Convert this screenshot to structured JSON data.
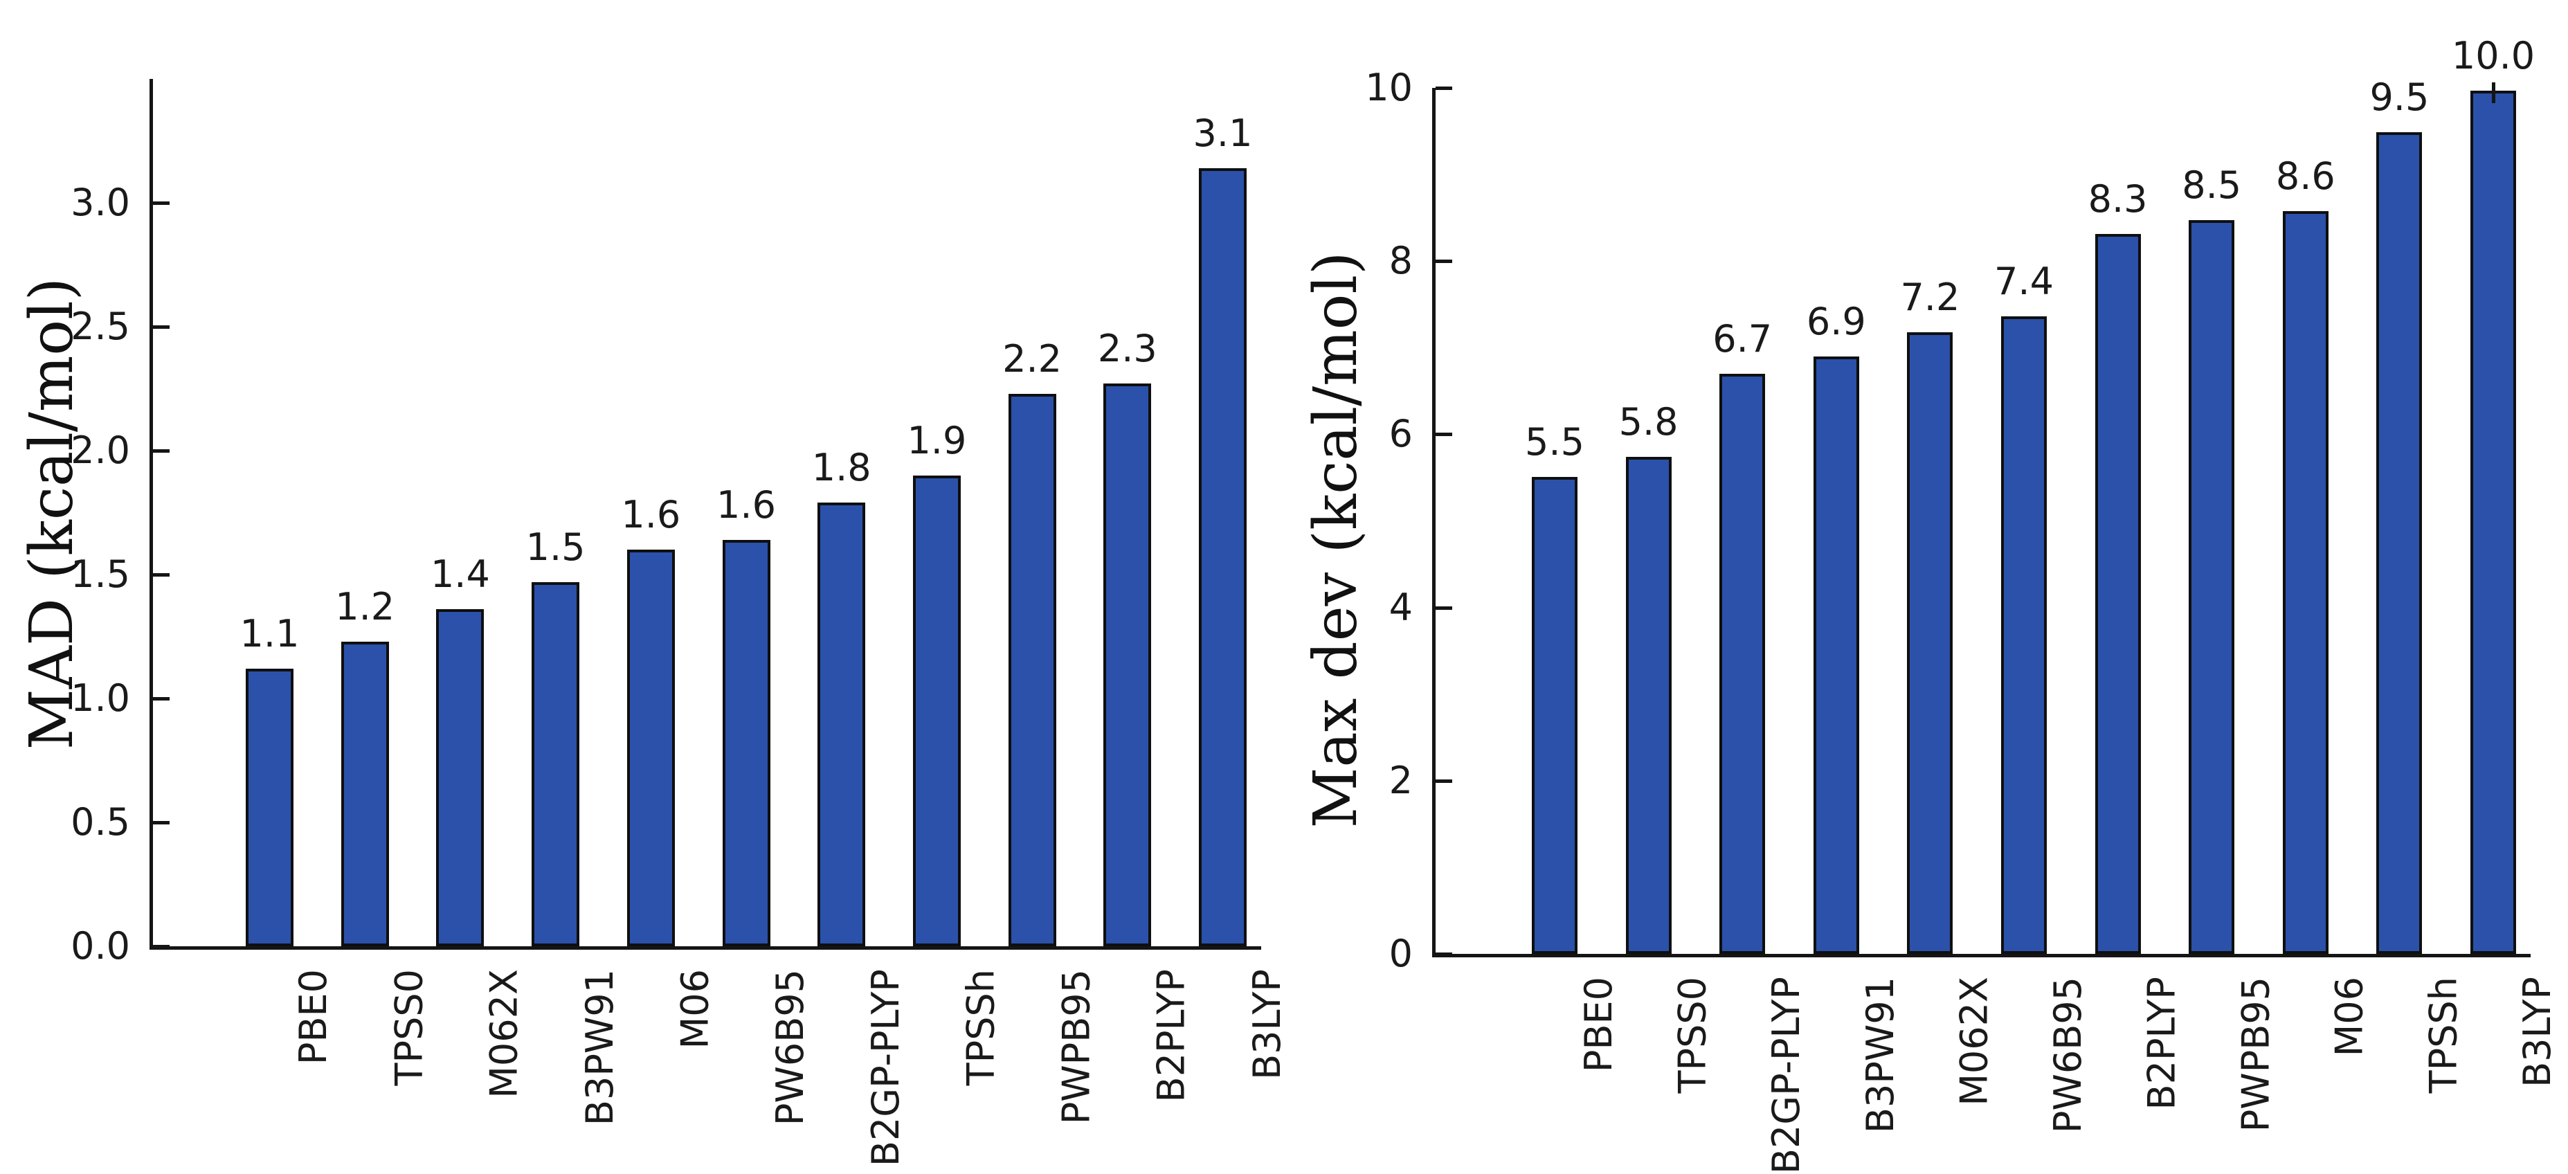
{
  "figure": {
    "background_color": "#ffffff",
    "panels": 2,
    "unit": "kcal/mol"
  },
  "chart_data": [
    {
      "type": "bar",
      "title": "",
      "xlabel": "",
      "ylabel": "MAD (kcal/mol)",
      "legend": null,
      "grid": false,
      "categories": [
        "PBE0",
        "TPSS0",
        "M062X",
        "B3PW91",
        "M06",
        "PW6B95",
        "B2GP-PLYP",
        "TPSSh",
        "PWPB95",
        "B2PLYP",
        "B3LYP"
      ],
      "values": [
        1.1,
        1.2,
        1.4,
        1.5,
        1.6,
        1.6,
        1.8,
        1.9,
        2.2,
        2.3,
        3.1
      ],
      "bar_value_labels": [
        "1.1",
        "1.2",
        "1.4",
        "1.5",
        "1.6",
        "1.6",
        "1.8",
        "1.9",
        "2.2",
        "2.3",
        "3.1"
      ],
      "render_values": [
        1.12,
        1.23,
        1.36,
        1.47,
        1.6,
        1.64,
        1.79,
        1.9,
        2.23,
        2.27,
        3.14
      ],
      "yticks": [
        {
          "label": "0.0",
          "value": 0.0
        },
        {
          "label": "0.5",
          "value": 0.5
        },
        {
          "label": "1.0",
          "value": 1.0
        },
        {
          "label": "1.5",
          "value": 1.5
        },
        {
          "label": "2.0",
          "value": 2.0
        },
        {
          "label": "2.5",
          "value": 2.5
        },
        {
          "label": "3.0",
          "value": 3.0
        }
      ],
      "ylim": [
        0,
        3.5
      ],
      "bar_color": "#2b51ab",
      "bar_edge_color": "#0f0f0f",
      "error_tick_index": null
    },
    {
      "type": "bar",
      "title": "",
      "xlabel": "",
      "ylabel": "Max dev (kcal/mol)",
      "legend": null,
      "grid": false,
      "categories": [
        "PBE0",
        "TPSS0",
        "B2GP-PLYP",
        "B3PW91",
        "M062X",
        "PW6B95",
        "B2PLYP",
        "PWPB95",
        "M06",
        "TPSSh",
        "B3LYP"
      ],
      "values": [
        5.5,
        5.8,
        6.7,
        6.9,
        7.2,
        7.4,
        8.3,
        8.5,
        8.6,
        9.5,
        10.0
      ],
      "bar_value_labels": [
        "5.5",
        "5.8",
        "6.7",
        "6.9",
        "7.2",
        "7.4",
        "8.3",
        "8.5",
        "8.6",
        "9.5",
        "10.0"
      ],
      "render_values": [
        5.51,
        5.74,
        6.7,
        6.9,
        7.18,
        7.36,
        8.31,
        8.47,
        8.58,
        9.49,
        9.97
      ],
      "yticks": [
        {
          "label": "0",
          "value": 0
        },
        {
          "label": "2",
          "value": 2
        },
        {
          "label": "4",
          "value": 4
        },
        {
          "label": "6",
          "value": 6
        },
        {
          "label": "8",
          "value": 8
        },
        {
          "label": "10",
          "value": 10
        }
      ],
      "ylim": [
        0,
        10.0
      ],
      "bar_color": "#2b51ab",
      "bar_edge_color": "#0f0f0f",
      "error_tick_index": 10
    }
  ]
}
